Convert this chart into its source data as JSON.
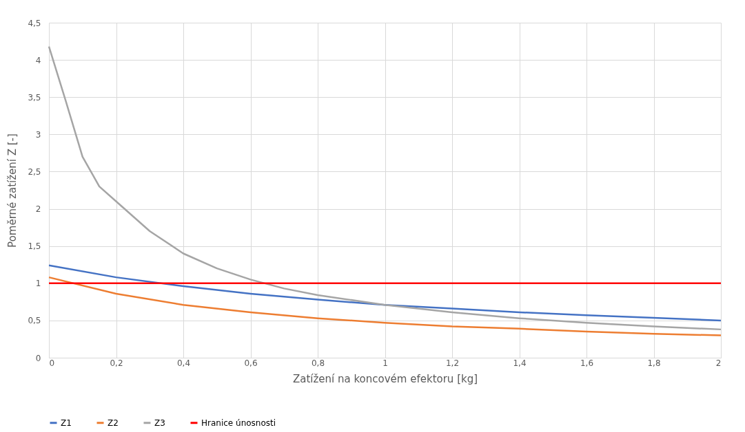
{
  "chart_data": {
    "type": "line",
    "xlabel": "Zatížení na koncovém efektoru [kg]",
    "ylabel": "Poměrné zatížení Z [-]",
    "xlim": [
      0,
      2
    ],
    "ylim": [
      0,
      4.5
    ],
    "xticks": [
      0,
      {
        "value": 0.2,
        "label": "0,2"
      },
      {
        "value": 0.4,
        "label": "0,4"
      },
      {
        "value": 0.6,
        "label": "0,6"
      },
      {
        "value": 0.8,
        "label": "0,8"
      },
      1,
      {
        "value": 1.2,
        "label": "1,2"
      },
      {
        "value": 1.4,
        "label": "1,4"
      },
      {
        "value": 1.6,
        "label": "1,6"
      },
      {
        "value": 1.8,
        "label": "1,8"
      },
      2
    ],
    "yticks": [
      0,
      {
        "value": 0.5,
        "label": "0,5"
      },
      1,
      {
        "value": 1.5,
        "label": "1,5"
      },
      2,
      {
        "value": 2.5,
        "label": "2,5"
      },
      3,
      {
        "value": 3.5,
        "label": "3,5"
      },
      4,
      {
        "value": 4.5,
        "label": "4,5"
      }
    ],
    "grid": true,
    "legend": "bottom",
    "marker": "none",
    "series": [
      {
        "name": "Z1",
        "color": "#4472c4",
        "x": [
          0,
          0.2,
          0.4,
          0.6,
          0.8,
          1,
          1.2,
          1.4,
          1.6,
          1.8,
          2
        ],
        "values": [
          1.24,
          1.08,
          0.96,
          0.86,
          0.78,
          0.71,
          0.66,
          0.61,
          0.57,
          0.535,
          0.5
        ]
      },
      {
        "name": "Z2",
        "color": "#ed7d31",
        "x": [
          0,
          0.2,
          0.4,
          0.6,
          0.8,
          1,
          1.2,
          1.4,
          1.6,
          1.8,
          2
        ],
        "values": [
          1.08,
          0.86,
          0.71,
          0.61,
          0.53,
          0.47,
          0.42,
          0.39,
          0.35,
          0.32,
          0.3
        ]
      },
      {
        "name": "Z3",
        "color": "#a5a5a5",
        "x": [
          0,
          0.05,
          0.1,
          0.15,
          0.2,
          0.3,
          0.4,
          0.5,
          0.6,
          0.7,
          0.8,
          1,
          1.2,
          1.4,
          1.6,
          1.8,
          2
        ],
        "values": [
          4.18,
          3.45,
          2.7,
          2.3,
          2.1,
          1.7,
          1.4,
          1.2,
          1.05,
          0.93,
          0.84,
          0.71,
          0.61,
          0.53,
          0.47,
          0.42,
          0.38
        ]
      },
      {
        "name": "Hranice únosnosti",
        "color": "#ff0000",
        "x": [
          0,
          2
        ],
        "values": [
          1,
          1
        ]
      }
    ]
  }
}
